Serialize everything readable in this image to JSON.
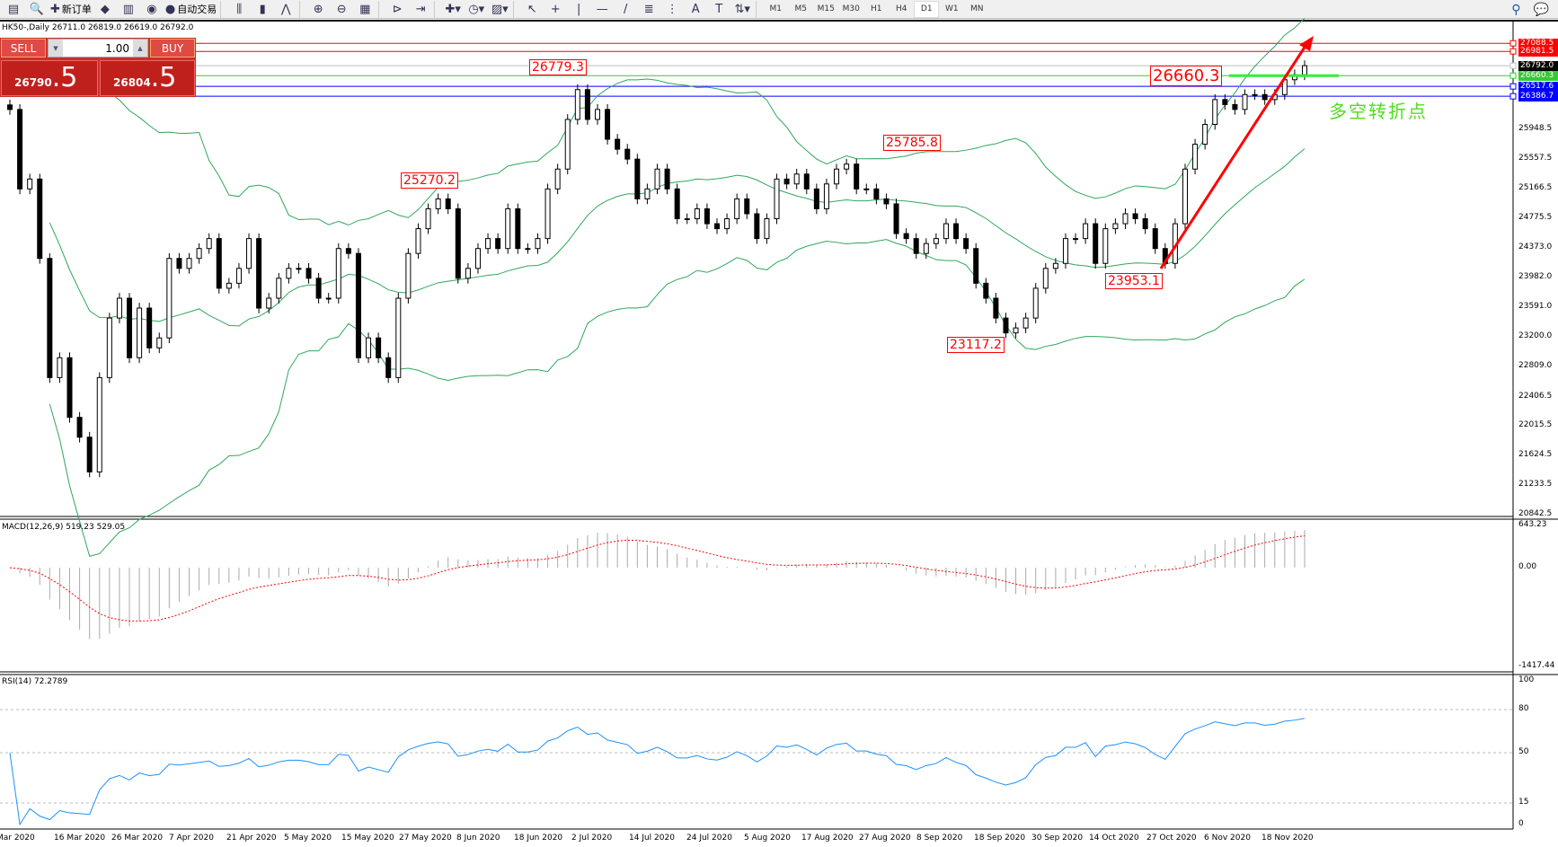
{
  "toolbar": {
    "items": [
      {
        "icon": "new-chart-icon",
        "glyph": "▤"
      },
      {
        "icon": "profiles-icon",
        "glyph": "🔍"
      },
      {
        "icon": "new-order-icon",
        "glyph": "✚",
        "label": "新订单"
      },
      {
        "icon": "metaeditor-icon",
        "glyph": "◆"
      },
      {
        "icon": "market-watch-icon",
        "glyph": "▥"
      },
      {
        "icon": "signals-icon",
        "glyph": "◉"
      },
      {
        "icon": "auto-trading-icon",
        "glyph": "●",
        "label": "自动交易"
      },
      {
        "sep": true
      },
      {
        "icon": "bar-chart-icon",
        "glyph": "⫼"
      },
      {
        "icon": "candlestick-icon",
        "glyph": "▮"
      },
      {
        "icon": "line-chart-icon",
        "glyph": "⋀"
      },
      {
        "sep": true
      },
      {
        "icon": "zoom-in-icon",
        "glyph": "⊕"
      },
      {
        "icon": "zoom-out-icon",
        "glyph": "⊖"
      },
      {
        "icon": "tile-windows-icon",
        "glyph": "▦"
      },
      {
        "sep": true
      },
      {
        "icon": "auto-scroll-icon",
        "glyph": "⊳"
      },
      {
        "icon": "chart-shift-icon",
        "glyph": "⇥"
      },
      {
        "sep": true
      },
      {
        "icon": "indicators-icon",
        "glyph": "✚▾"
      },
      {
        "icon": "periods-icon",
        "glyph": "◷▾"
      },
      {
        "icon": "templates-icon",
        "glyph": "▨▾"
      },
      {
        "sep": true
      },
      {
        "icon": "cursor-icon",
        "glyph": "↖"
      },
      {
        "icon": "crosshair-icon",
        "glyph": "+"
      },
      {
        "icon": "vertical-line-icon",
        "glyph": "|"
      },
      {
        "icon": "horizontal-line-icon",
        "glyph": "—"
      },
      {
        "icon": "trendline-icon",
        "glyph": "/"
      },
      {
        "icon": "fibonacci-icon",
        "glyph": "≣"
      },
      {
        "icon": "fibo-expansion-icon",
        "glyph": "⋮"
      },
      {
        "icon": "text-icon",
        "glyph": "A"
      },
      {
        "icon": "text-label-icon",
        "glyph": "T"
      },
      {
        "icon": "arrows-icon",
        "glyph": "⇅▾"
      },
      {
        "sep": true
      }
    ],
    "timeframes": [
      "M1",
      "M5",
      "M15",
      "M30",
      "H1",
      "H4",
      "D1",
      "W1",
      "MN"
    ],
    "active_timeframe": "D1"
  },
  "header": "HK50-,Daily  26711.0 26819.0 26619.0 26792.0",
  "trade_panel": {
    "sell_label": "SELL",
    "buy_label": "BUY",
    "lot": "1.00",
    "sell_price_main": "26790",
    "sell_price_big": ".5",
    "buy_price_main": "26804",
    "buy_price_big": ".5"
  },
  "annotations": {
    "high_jul": "26779.3",
    "apr_level": "25270.2",
    "aug_level": "25785.8",
    "sep_low": "23117.2",
    "oct_low": "23953.1",
    "pivot": "26660.3",
    "pivot_note": "多空转折点"
  },
  "price_axis": [
    "25948.5",
    "25557.5",
    "25166.5",
    "24775.5",
    "24373.0",
    "23982.0",
    "23591.0",
    "23200.0",
    "22809.0",
    "22406.5",
    "22015.5",
    "21624.5",
    "21233.5",
    "20842.5"
  ],
  "price_tags": [
    {
      "value": "27088.5",
      "color": "#ff0000"
    },
    {
      "value": "26981.5",
      "color": "#ff0000"
    },
    {
      "value": "26792.0",
      "color": "#000000"
    },
    {
      "value": "26660.3",
      "color": "#33cc33"
    },
    {
      "value": "26517.6",
      "color": "#0000ff"
    },
    {
      "value": "26386.7",
      "color": "#0000ff"
    }
  ],
  "macd": {
    "label": "MACD(12,26,9) 519.23 529.05",
    "axis": [
      "643.23",
      "0.00",
      "-1417.44"
    ]
  },
  "rsi": {
    "label": "RSI(14) 72.2789",
    "axis": [
      "100",
      "80",
      "50",
      "15",
      "0"
    ]
  },
  "dates": [
    "Mar 2020",
    "16 Mar 2020",
    "26 Mar 2020",
    "7 Apr 2020",
    "21 Apr 2020",
    "5 May 2020",
    "15 May 2020",
    "27 May 2020",
    "8 Jun 2020",
    "18 Jun 2020",
    "2 Jul 2020",
    "14 Jul 2020",
    "24 Jul 2020",
    "5 Aug 2020",
    "17 Aug 2020",
    "27 Aug 2020",
    "8 Sep 2020",
    "18 Sep 2020",
    "30 Sep 2020",
    "14 Oct 2020",
    "27 Oct 2020",
    "6 Nov 2020",
    "18 Nov 2020"
  ],
  "colors": {
    "bands": "#2ea85a",
    "macd_signal": "#ff0000",
    "rsi": "#1e90ff",
    "arrow": "#ff0000",
    "pivot_line": "#33ee33"
  },
  "chart_data": {
    "type": "candlestick",
    "symbol": "HK50-",
    "timeframe": "Daily",
    "indicators": [
      "Bollinger Bands",
      "MACD(12,26,9)",
      "RSI(14)"
    ],
    "ylim": [
      20842.5,
      27088.5
    ],
    "closes": [
      26212,
      25159,
      25290,
      24238,
      22659,
      22922,
      22132,
      21869,
      21409,
      22659,
      23448,
      23711,
      22922,
      23580,
      23053,
      23185,
      24238,
      24106,
      24238,
      24369,
      24501,
      23843,
      23909,
      24106,
      24501,
      23580,
      23711,
      23975,
      24106,
      24106,
      23975,
      23711,
      23711,
      24369,
      24304,
      22922,
      23185,
      22922,
      22659,
      23711,
      24304,
      24632,
      24896,
      25027,
      24896,
      23975,
      24106,
      24369,
      24501,
      24369,
      24896,
      24369,
      24369,
      24501,
      25159,
      25422,
      26080,
      26475,
      26080,
      26212,
      25817,
      25685,
      25554,
      25027,
      25159,
      25422,
      25159,
      24764,
      24764,
      24896,
      24698,
      24632,
      24764,
      25027,
      24830,
      24501,
      24764,
      25290,
      25225,
      25356,
      25159,
      24896,
      25225,
      25422,
      25488,
      25159,
      25159,
      25027,
      24961,
      24567,
      24501,
      24304,
      24435,
      24501,
      24698,
      24501,
      24369,
      23909,
      23711,
      23448,
      23251,
      23317,
      23448,
      23843,
      24106,
      24172,
      24501,
      24501,
      24698,
      24172,
      24632,
      24698,
      24830,
      24764,
      24632,
      24369,
      24172,
      24698,
      25422,
      25751,
      26014,
      26343,
      26277,
      26212,
      26409,
      26409,
      26343,
      26409,
      26606,
      26672,
      26792
    ],
    "levels": [
      27088.5,
      26981.5,
      26792.0,
      26660.3,
      26517.6,
      26386.7
    ]
  }
}
